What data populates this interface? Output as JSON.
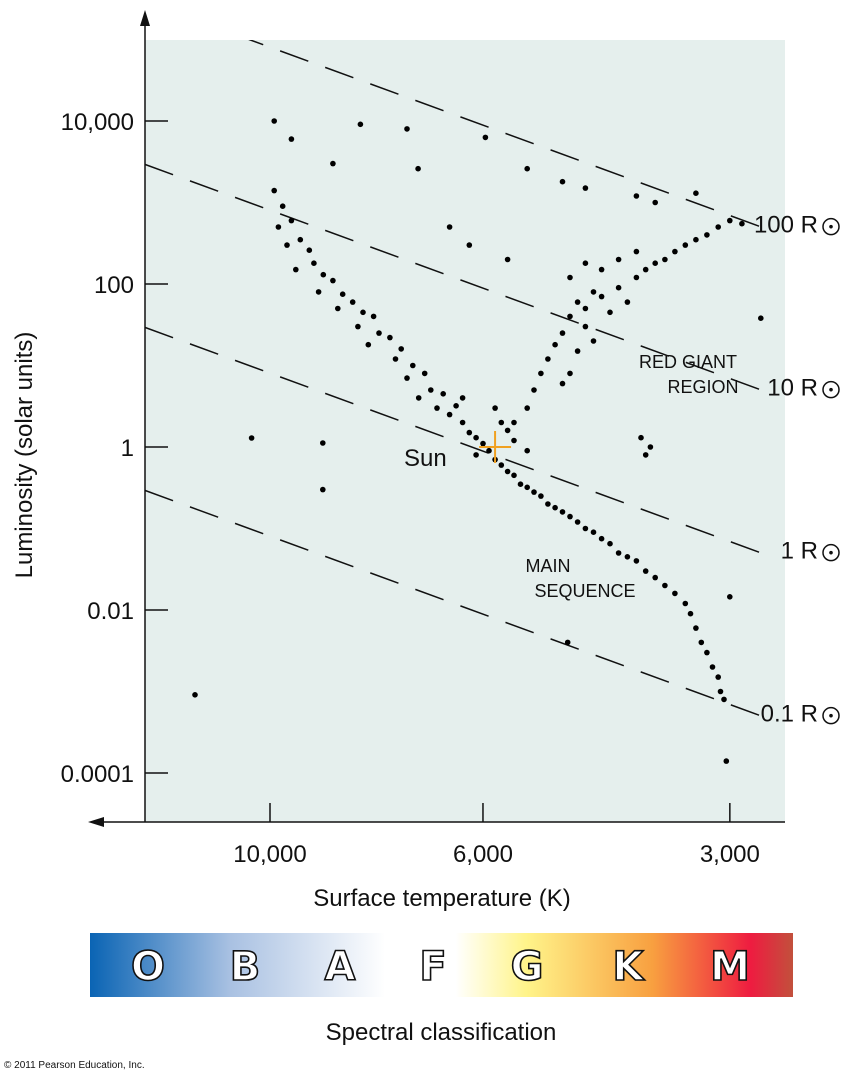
{
  "chart_data": {
    "type": "scatter",
    "title": "",
    "xlabel": "Surface temperature (K)",
    "ylabel": "Luminosity (solar units)",
    "x_scale": "log-reversed",
    "y_scale": "log",
    "xlim": [
      13500,
      2570
    ],
    "ylim": [
      1e-05,
      100000
    ],
    "x_ticks": [
      {
        "value": 10000,
        "label": "10,000"
      },
      {
        "value": 6000,
        "label": "6,000"
      },
      {
        "value": 3000,
        "label": "3,000"
      }
    ],
    "y_ticks": [
      {
        "value": 10000,
        "label": "10,000"
      },
      {
        "value": 100,
        "label": "100"
      },
      {
        "value": 1,
        "label": "1"
      },
      {
        "value": 0.01,
        "label": "0.01"
      },
      {
        "value": 0.0001,
        "label": "0.0001"
      }
    ],
    "grid": false,
    "sun_temperature": 5800,
    "radius_lines": [
      {
        "radius": 100,
        "label": "100 R"
      },
      {
        "radius": 10,
        "label": "10 R"
      },
      {
        "radius": 1,
        "label": "1 R"
      },
      {
        "radius": 0.1,
        "label": "0.1 R"
      }
    ],
    "sun": {
      "label": "Sun",
      "temperature": 5800,
      "luminosity": 1,
      "color": "#f0a020"
    },
    "annotations": [
      {
        "id": "red-giant",
        "lines": [
          "RED GIANT",
          "REGION"
        ]
      },
      {
        "id": "main-sequence",
        "lines": [
          "MAIN",
          "SEQUENCE"
        ]
      }
    ],
    "points": [
      [
        9900,
        1400
      ],
      [
        9700,
        900
      ],
      [
        9500,
        600
      ],
      [
        9800,
        500
      ],
      [
        9300,
        350
      ],
      [
        9100,
        260
      ],
      [
        9600,
        300
      ],
      [
        9000,
        180
      ],
      [
        8800,
        130
      ],
      [
        9400,
        150
      ],
      [
        8600,
        110
      ],
      [
        8900,
        80
      ],
      [
        8400,
        75
      ],
      [
        8200,
        60
      ],
      [
        8500,
        50
      ],
      [
        8000,
        45
      ],
      [
        7800,
        40
      ],
      [
        8100,
        30
      ],
      [
        7700,
        25
      ],
      [
        7500,
        22
      ],
      [
        7900,
        18
      ],
      [
        7300,
        16
      ],
      [
        7400,
        12
      ],
      [
        7100,
        10
      ],
      [
        7200,
        7
      ],
      [
        6900,
        8
      ],
      [
        6800,
        5
      ],
      [
        7000,
        4
      ],
      [
        6600,
        4.5
      ],
      [
        6700,
        3
      ],
      [
        6500,
        2.5
      ],
      [
        6400,
        3.2
      ],
      [
        6300,
        2
      ],
      [
        6200,
        1.5
      ],
      [
        6100,
        1.3
      ],
      [
        6000,
        1.1
      ],
      [
        6100,
        0.8
      ],
      [
        5900,
        0.9
      ],
      [
        5800,
        0.7
      ],
      [
        5700,
        0.6
      ],
      [
        5600,
        0.5
      ],
      [
        5500,
        0.45
      ],
      [
        5400,
        0.35
      ],
      [
        5300,
        0.32
      ],
      [
        5200,
        0.28
      ],
      [
        5100,
        0.25
      ],
      [
        5000,
        0.2
      ],
      [
        4900,
        0.18
      ],
      [
        4800,
        0.16
      ],
      [
        4700,
        0.14
      ],
      [
        4600,
        0.12
      ],
      [
        4500,
        0.1
      ],
      [
        4400,
        0.09
      ],
      [
        4300,
        0.075
      ],
      [
        4200,
        0.065
      ],
      [
        4100,
        0.05
      ],
      [
        4000,
        0.045
      ],
      [
        3900,
        0.04
      ],
      [
        3800,
        0.03
      ],
      [
        3700,
        0.025
      ],
      [
        3600,
        0.02
      ],
      [
        3500,
        0.016
      ],
      [
        3400,
        0.012
      ],
      [
        3350,
        0.009
      ],
      [
        3300,
        0.006
      ],
      [
        3250,
        0.004
      ],
      [
        3200,
        0.003
      ],
      [
        3150,
        0.002
      ],
      [
        3100,
        0.0015
      ],
      [
        3080,
        0.001
      ],
      [
        3050,
        0.0008
      ],
      [
        6300,
        4
      ],
      [
        5800,
        3
      ],
      [
        5700,
        2
      ],
      [
        5600,
        1.6
      ],
      [
        5500,
        1.2
      ],
      [
        5300,
        0.9
      ],
      [
        5500,
        2
      ],
      [
        5300,
        3
      ],
      [
        5200,
        5
      ],
      [
        5100,
        8
      ],
      [
        5000,
        12
      ],
      [
        4900,
        18
      ],
      [
        4800,
        25
      ],
      [
        4700,
        40
      ],
      [
        4600,
        60
      ],
      [
        4500,
        50
      ],
      [
        4400,
        80
      ],
      [
        4300,
        70
      ],
      [
        4200,
        45
      ],
      [
        4100,
        90
      ],
      [
        4000,
        60
      ],
      [
        3900,
        120
      ],
      [
        3800,
        150
      ],
      [
        3700,
        180
      ],
      [
        3600,
        200
      ],
      [
        3500,
        250
      ],
      [
        3400,
        300
      ],
      [
        3300,
        350
      ],
      [
        3200,
        400
      ],
      [
        3100,
        500
      ],
      [
        3000,
        600
      ],
      [
        2900,
        550
      ],
      [
        4500,
        30
      ],
      [
        4600,
        15
      ],
      [
        4700,
        8
      ],
      [
        4400,
        20
      ],
      [
        4800,
        6
      ],
      [
        4300,
        150
      ],
      [
        4500,
        180
      ],
      [
        4700,
        120
      ],
      [
        4100,
        200
      ],
      [
        3900,
        250
      ],
      [
        11970,
        0.00091
      ],
      [
        10450,
        1.29
      ],
      [
        8810,
        1.12
      ],
      [
        8810,
        0.3
      ],
      [
        4730,
        0.004
      ],
      [
        3000,
        0.0145
      ],
      [
        3030,
        0.00014
      ],
      [
        2750,
        38
      ],
      [
        8050,
        9100
      ],
      [
        5960,
        6300
      ],
      [
        7010,
        2600
      ],
      [
        9900,
        10000
      ],
      [
        9500,
        6000
      ],
      [
        8600,
        3000
      ],
      [
        7200,
        8000
      ],
      [
        5300,
        2600
      ],
      [
        4800,
        1800
      ],
      [
        4500,
        1500
      ],
      [
        3900,
        1200
      ],
      [
        3700,
        1000
      ],
      [
        3300,
        1300
      ],
      [
        6500,
        500
      ],
      [
        6200,
        300
      ],
      [
        5600,
        200
      ],
      [
        3850,
        1.3
      ],
      [
        3750,
        1.0
      ],
      [
        3800,
        0.8
      ]
    ]
  },
  "spectral": {
    "title": "Spectral classification",
    "classes": [
      "O",
      "B",
      "A",
      "F",
      "G",
      "K",
      "M"
    ],
    "colors": [
      "#0a64b4",
      "#a9c1e2",
      "#ffffff",
      "#fff48a",
      "#f8a040",
      "#ee1c40",
      "#c2503c"
    ]
  },
  "copyright": "© 2011 Pearson Education, Inc."
}
